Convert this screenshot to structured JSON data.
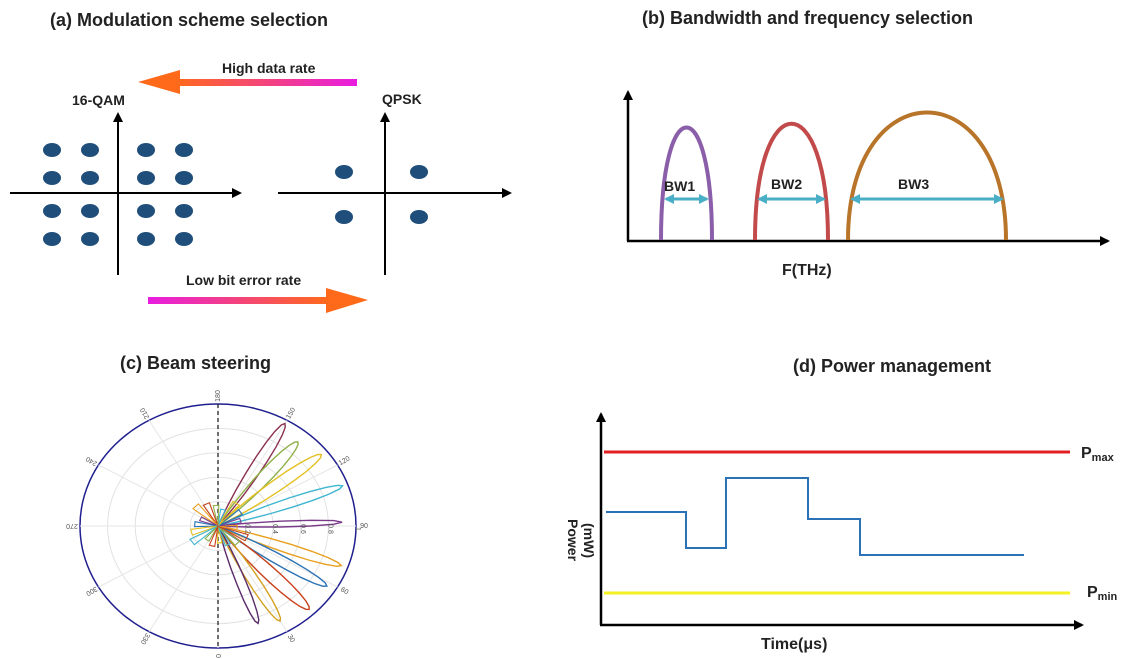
{
  "panel_a": {
    "title": "(a)   Modulation scheme selection",
    "left_label": "16-QAM",
    "right_label": "QPSK",
    "top_arrow_label": "High data rate",
    "bottom_arrow_label": "Low bit error rate"
  },
  "panel_b": {
    "title": "(b)   Bandwidth and frequency selection",
    "bw_labels": [
      "BW1",
      "BW2",
      "BW3"
    ],
    "x_axis_label": "F(THz)",
    "colors": [
      "#8a5ea8",
      "#c24a4a",
      "#b8752a"
    ]
  },
  "panel_c": {
    "title": "(c)   Beam steering",
    "angle_labels": [
      "180",
      "150",
      "120",
      "90",
      "60",
      "30",
      "0",
      "330",
      "300",
      "270",
      "240",
      "210"
    ],
    "radius_labels": [
      "0.2",
      "0.4",
      "0.6",
      "0.8",
      "1"
    ]
  },
  "panel_d": {
    "title": "(d)   Power management",
    "y_axis_label": "Power",
    "y_axis_unit": "(mW)",
    "x_axis_label": "Time(μs)",
    "pmax_main": "P",
    "pmax_sub": "max",
    "pmin_main": "P",
    "pmin_sub": "min",
    "pmax_color": "#e02020",
    "pmin_color": "#f5f020",
    "signal_color": "#2a72b5"
  }
}
